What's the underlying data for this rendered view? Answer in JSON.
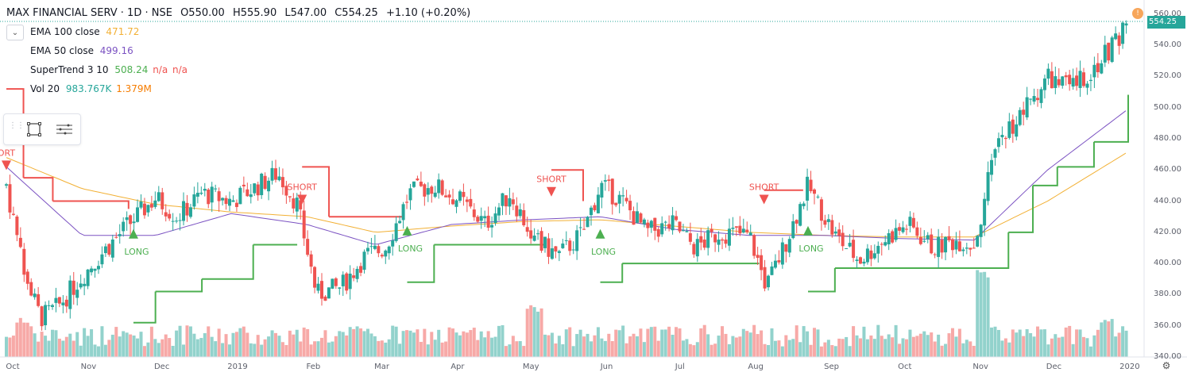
{
  "header": {
    "symbol": "MAX FINANCIAL SERV · 1D · NSE",
    "open": "O550.00",
    "high": "H555.90",
    "low": "L547.00",
    "close": "C554.25",
    "change": "+1.10 (+0.20%)"
  },
  "indicators": [
    {
      "name": "EMA 100 close",
      "value": "471.72",
      "color": "#f2b034"
    },
    {
      "name": "EMA 50 close",
      "value": "499.16",
      "color": "#7b52c2"
    },
    {
      "name": "SuperTrend 3 10",
      "value": "508.24",
      "extra1": "n/a",
      "extra2": "n/a",
      "color": "#4caf50",
      "extra_color": "#ef5350"
    },
    {
      "name": "Vol 20",
      "value": "983.767K",
      "value2": "1.379M",
      "color": "#26a69a",
      "value2_color": "#f57c00"
    }
  ],
  "price_axis": {
    "labels": [
      "560.00",
      "540.00",
      "520.00",
      "500.00",
      "480.00",
      "460.00",
      "440.00",
      "420.00",
      "400.00",
      "380.00",
      "360.00",
      "340.00"
    ],
    "last_price": "554.25",
    "colors": {
      "up": "#26a69a",
      "down": "#ef5350",
      "last": "#26a69a"
    }
  },
  "time_axis": {
    "labels": [
      "Oct",
      "Nov",
      "Dec",
      "2019",
      "Feb",
      "Mar",
      "Apr",
      "May",
      "Jun",
      "Jul",
      "Aug",
      "Sep",
      "Oct",
      "Nov",
      "Dec",
      "2020"
    ]
  },
  "signals": [
    {
      "text": "ORT",
      "kind": "short"
    },
    {
      "text": "LONG",
      "kind": "long"
    },
    {
      "text": "SHORT",
      "kind": "short"
    },
    {
      "text": "LONG",
      "kind": "long"
    },
    {
      "text": "SHORT",
      "kind": "short"
    },
    {
      "text": "LONG",
      "kind": "long"
    },
    {
      "text": "SHORT",
      "kind": "short"
    },
    {
      "text": "LONG",
      "kind": "long"
    }
  ],
  "chart_data": {
    "type": "candlestick",
    "x_range": [
      "2018-10-01",
      "2020-01-03"
    ],
    "ylim": [
      340,
      565
    ],
    "price_path": [
      {
        "date": "2018-10-01",
        "close": 450
      },
      {
        "date": "2018-10-08",
        "close": 395
      },
      {
        "date": "2018-10-15",
        "close": 365
      },
      {
        "date": "2018-10-22",
        "close": 372
      },
      {
        "date": "2018-11-01",
        "close": 392
      },
      {
        "date": "2018-11-10",
        "close": 408
      },
      {
        "date": "2018-11-20",
        "close": 425
      },
      {
        "date": "2018-12-01",
        "close": 442
      },
      {
        "date": "2018-12-10",
        "close": 430
      },
      {
        "date": "2018-12-20",
        "close": 445
      },
      {
        "date": "2019-01-01",
        "close": 440
      },
      {
        "date": "2019-01-10",
        "close": 448
      },
      {
        "date": "2019-01-20",
        "close": 458
      },
      {
        "date": "2019-01-28",
        "close": 438
      },
      {
        "date": "2019-02-05",
        "close": 380
      },
      {
        "date": "2019-02-15",
        "close": 385
      },
      {
        "date": "2019-02-25",
        "close": 405
      },
      {
        "date": "2019-03-05",
        "close": 410
      },
      {
        "date": "2019-03-15",
        "close": 445
      },
      {
        "date": "2019-03-25",
        "close": 450
      },
      {
        "date": "2019-04-05",
        "close": 440
      },
      {
        "date": "2019-04-15",
        "close": 425
      },
      {
        "date": "2019-04-25",
        "close": 445
      },
      {
        "date": "2019-05-05",
        "close": 415
      },
      {
        "date": "2019-05-15",
        "close": 405
      },
      {
        "date": "2019-05-25",
        "close": 420
      },
      {
        "date": "2019-06-01",
        "close": 450
      },
      {
        "date": "2019-06-10",
        "close": 440
      },
      {
        "date": "2019-06-20",
        "close": 420
      },
      {
        "date": "2019-07-01",
        "close": 425
      },
      {
        "date": "2019-07-10",
        "close": 410
      },
      {
        "date": "2019-07-20",
        "close": 420
      },
      {
        "date": "2019-08-01",
        "close": 418
      },
      {
        "date": "2019-08-08",
        "close": 385
      },
      {
        "date": "2019-08-15",
        "close": 410
      },
      {
        "date": "2019-08-25",
        "close": 450
      },
      {
        "date": "2019-09-05",
        "close": 418
      },
      {
        "date": "2019-09-15",
        "close": 402
      },
      {
        "date": "2019-09-25",
        "close": 415
      },
      {
        "date": "2019-10-05",
        "close": 425
      },
      {
        "date": "2019-10-15",
        "close": 410
      },
      {
        "date": "2019-10-25",
        "close": 415
      },
      {
        "date": "2019-11-01",
        "close": 412
      },
      {
        "date": "2019-11-05",
        "close": 440
      },
      {
        "date": "2019-11-10",
        "close": 478
      },
      {
        "date": "2019-11-20",
        "close": 495
      },
      {
        "date": "2019-12-01",
        "close": 520
      },
      {
        "date": "2019-12-10",
        "close": 512
      },
      {
        "date": "2019-12-20",
        "close": 525
      },
      {
        "date": "2019-12-28",
        "close": 540
      },
      {
        "date": "2020-01-03",
        "close": 554.25
      }
    ],
    "ema100": [
      {
        "date": "2018-10-01",
        "value": 468
      },
      {
        "date": "2018-11-01",
        "value": 448
      },
      {
        "date": "2018-12-01",
        "value": 438
      },
      {
        "date": "2019-01-01",
        "value": 433
      },
      {
        "date": "2019-02-01",
        "value": 430
      },
      {
        "date": "2019-03-01",
        "value": 420
      },
      {
        "date": "2019-04-01",
        "value": 424
      },
      {
        "date": "2019-05-01",
        "value": 427
      },
      {
        "date": "2019-06-01",
        "value": 428
      },
      {
        "date": "2019-07-01",
        "value": 424
      },
      {
        "date": "2019-08-01",
        "value": 420
      },
      {
        "date": "2019-09-01",
        "value": 418
      },
      {
        "date": "2019-10-01",
        "value": 417
      },
      {
        "date": "2019-11-01",
        "value": 417
      },
      {
        "date": "2019-12-01",
        "value": 440
      },
      {
        "date": "2020-01-03",
        "value": 471.72
      }
    ],
    "ema50": [
      {
        "date": "2018-10-01",
        "value": 462
      },
      {
        "date": "2018-11-01",
        "value": 418
      },
      {
        "date": "2018-12-01",
        "value": 418
      },
      {
        "date": "2019-01-01",
        "value": 432
      },
      {
        "date": "2019-02-01",
        "value": 425
      },
      {
        "date": "2019-03-01",
        "value": 412
      },
      {
        "date": "2019-04-01",
        "value": 425
      },
      {
        "date": "2019-05-01",
        "value": 428
      },
      {
        "date": "2019-06-01",
        "value": 430
      },
      {
        "date": "2019-07-01",
        "value": 422
      },
      {
        "date": "2019-08-01",
        "value": 418
      },
      {
        "date": "2019-09-01",
        "value": 418
      },
      {
        "date": "2019-10-01",
        "value": 416
      },
      {
        "date": "2019-11-01",
        "value": 415
      },
      {
        "date": "2019-12-01",
        "value": 460
      },
      {
        "date": "2020-01-03",
        "value": 499.16
      }
    ],
    "supertrend": [
      {
        "date": "2018-10-01",
        "value": 512,
        "trend": "short"
      },
      {
        "date": "2018-10-08",
        "value": 455,
        "trend": "short"
      },
      {
        "date": "2018-10-20",
        "value": 440,
        "trend": "short"
      },
      {
        "date": "2018-11-20",
        "value": 435,
        "trend": "short"
      },
      {
        "date": "2018-11-22",
        "value": 362,
        "trend": "long"
      },
      {
        "date": "2018-12-01",
        "value": 382,
        "trend": "long"
      },
      {
        "date": "2018-12-20",
        "value": 390,
        "trend": "long"
      },
      {
        "date": "2019-01-10",
        "value": 412,
        "trend": "long"
      },
      {
        "date": "2019-01-28",
        "value": 412,
        "trend": "long"
      },
      {
        "date": "2019-01-30",
        "value": 462,
        "trend": "short"
      },
      {
        "date": "2019-02-10",
        "value": 430,
        "trend": "short"
      },
      {
        "date": "2019-03-12",
        "value": 430,
        "trend": "short"
      },
      {
        "date": "2019-03-14",
        "value": 388,
        "trend": "long"
      },
      {
        "date": "2019-03-25",
        "value": 412,
        "trend": "long"
      },
      {
        "date": "2019-05-10",
        "value": 412,
        "trend": "long"
      },
      {
        "date": "2019-05-12",
        "value": 460,
        "trend": "short"
      },
      {
        "date": "2019-05-25",
        "value": 440,
        "trend": "short"
      },
      {
        "date": "2019-06-01",
        "value": 388,
        "trend": "long"
      },
      {
        "date": "2019-06-10",
        "value": 400,
        "trend": "long"
      },
      {
        "date": "2019-08-05",
        "value": 400,
        "trend": "long"
      },
      {
        "date": "2019-08-07",
        "value": 447,
        "trend": "short"
      },
      {
        "date": "2019-08-23",
        "value": 447,
        "trend": "short"
      },
      {
        "date": "2019-08-25",
        "value": 382,
        "trend": "long"
      },
      {
        "date": "2019-09-05",
        "value": 397,
        "trend": "long"
      },
      {
        "date": "2019-11-05",
        "value": 397,
        "trend": "long"
      },
      {
        "date": "2019-11-15",
        "value": 420,
        "trend": "long"
      },
      {
        "date": "2019-11-25",
        "value": 450,
        "trend": "long"
      },
      {
        "date": "2019-12-05",
        "value": 462,
        "trend": "long"
      },
      {
        "date": "2019-12-20",
        "value": 478,
        "trend": "long"
      },
      {
        "date": "2020-01-03",
        "value": 508.24,
        "trend": "long"
      }
    ],
    "volume": {
      "avg_20": "983.767K",
      "last": "1.379M",
      "spikes": [
        {
          "date": "2018-10-08",
          "value_rel": 0.45
        },
        {
          "date": "2019-05-05",
          "value_rel": 0.6
        },
        {
          "date": "2019-11-05",
          "value_rel": 1.0
        },
        {
          "date": "2019-12-25",
          "value_rel": 0.45
        }
      ]
    }
  }
}
